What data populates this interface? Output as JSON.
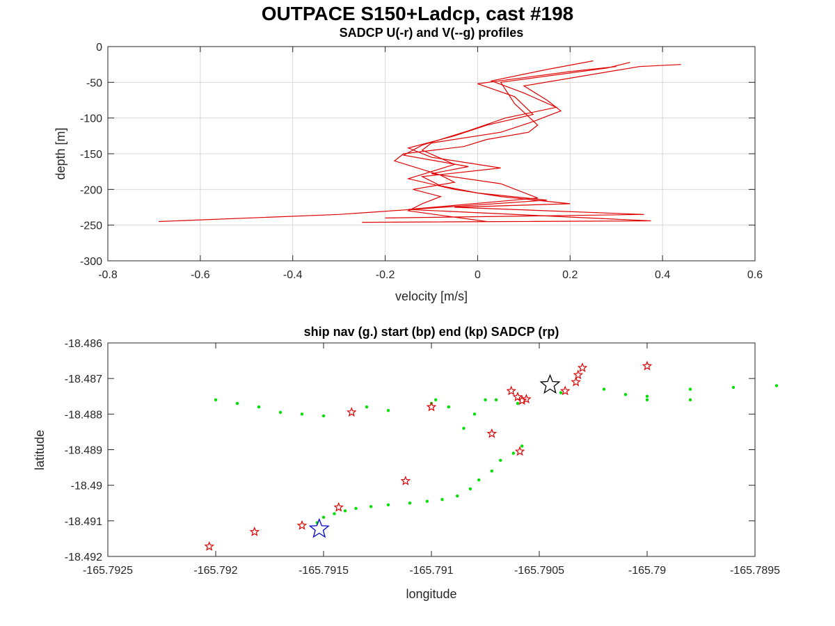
{
  "figure": {
    "title": "OUTPACE S150+Ladcp, cast #198"
  },
  "chart_data": [
    {
      "type": "line",
      "title": "SADCP U(-r) and V(--g) profiles",
      "xlabel": "velocity [m/s]",
      "ylabel": "depth [m]",
      "xlim": [
        -0.8,
        0.6
      ],
      "ylim": [
        -300,
        0
      ],
      "xticks": [
        "-0.8",
        "-0.6",
        "-0.4",
        "-0.2",
        "0",
        "0.2",
        "0.4",
        "0.6"
      ],
      "yticks": [
        "0",
        "-50",
        "-100",
        "-150",
        "-200",
        "-250",
        "-300"
      ],
      "grid": true,
      "colors": {
        "U": "#e00000",
        "V": "#00e000"
      },
      "series": [
        {
          "name": "U",
          "style": "solid",
          "color": "#e00000",
          "x": [
            0.33,
            0.28,
            0.05,
            0.08,
            0.13,
            0.11,
            0.02,
            -0.03,
            -0.16,
            -0.18,
            -0.08,
            -0.05,
            -0.14,
            -0.08,
            -0.12,
            -0.15,
            0.02
          ],
          "y": [
            -22,
            -30,
            -50,
            -80,
            -110,
            -120,
            -130,
            -140,
            -150,
            -160,
            -180,
            -190,
            -200,
            -210,
            -220,
            -230,
            -245
          ]
        },
        {
          "name": "U",
          "style": "solid",
          "color": "#e00000",
          "x": [
            0.44,
            0.35,
            0.1,
            0.15,
            0.18,
            0.12,
            0.05,
            -0.1,
            -0.12,
            -0.05,
            -0.15,
            -0.05,
            0.05,
            0.2,
            -0.05,
            0.36,
            -0.2
          ],
          "y": [
            -25,
            -28,
            -55,
            -75,
            -90,
            -105,
            -120,
            -135,
            -145,
            -165,
            -185,
            -200,
            -210,
            -220,
            -225,
            -235,
            -240
          ]
        },
        {
          "name": "U",
          "style": "solid",
          "color": "#e00000",
          "x": [
            0.3,
            0.2,
            0.0,
            0.08,
            0.12,
            0.02,
            -0.05,
            -0.15,
            -0.1,
            0.05,
            -0.12,
            -0.08,
            0.0,
            0.15,
            -0.3,
            -0.69
          ],
          "y": [
            -28,
            -35,
            -52,
            -70,
            -95,
            -110,
            -125,
            -142,
            -155,
            -170,
            -182,
            -195,
            -205,
            -215,
            -235,
            -245
          ]
        },
        {
          "name": "U",
          "style": "solid",
          "color": "#e00000",
          "x": [
            0.25,
            0.15,
            0.03,
            0.1,
            0.17,
            0.06,
            -0.02,
            -0.12,
            -0.16,
            -0.02,
            -0.1,
            0.05,
            0.13,
            -0.15,
            0.375,
            -0.25
          ],
          "y": [
            -20,
            -32,
            -48,
            -65,
            -85,
            -100,
            -118,
            -138,
            -152,
            -168,
            -178,
            -192,
            -212,
            -228,
            -244,
            -246
          ]
        }
      ]
    },
    {
      "type": "scatter",
      "title": "ship nav (g.) start (bp) end (kp) SADCP (rp)",
      "xlabel": "longitude",
      "ylabel": "latitude",
      "xlim": [
        -165.7925,
        -165.7895
      ],
      "ylim": [
        -18.492,
        -18.486
      ],
      "xticks": [
        "-165.7925",
        "-165.792",
        "-165.7915",
        "-165.791",
        "-165.7905",
        "-165.79",
        "-165.7895"
      ],
      "yticks": [
        "-18.486",
        "-18.487",
        "-18.488",
        "-18.489",
        "-18.49",
        "-18.491",
        "-18.492"
      ],
      "grid": false,
      "colors": {
        "nav": "#00e000",
        "start": "#0000cc",
        "end": "#000000",
        "sadcp": "#e00000"
      },
      "series": [
        {
          "name": "nav",
          "marker": "dot",
          "color": "#00e000",
          "x": [
            -165.79153,
            -165.7915,
            -165.79145,
            -165.7914,
            -165.79135,
            -165.79128,
            -165.7912,
            -165.7911,
            -165.79102,
            -165.79095,
            -165.79088,
            -165.79082,
            -165.79078,
            -165.79072,
            -165.79068,
            -165.79062,
            -165.79058,
            -165.79085,
            -165.7908,
            -165.79092,
            -165.79098,
            -165.7907,
            -165.7906,
            -165.7904,
            -165.7902,
            -165.79,
            -165.7898,
            -165.7896,
            -165.7894,
            -165.7898,
            -165.79,
            -165.7901,
            -165.7916,
            -165.7917,
            -165.7918,
            -165.7919,
            -165.792,
            -165.7915,
            -165.7913,
            -165.7912,
            -165.791,
            -165.79075
          ],
          "y": [
            -18.49105,
            -18.4909,
            -18.4908,
            -18.49072,
            -18.49065,
            -18.4906,
            -18.49055,
            -18.4905,
            -18.49045,
            -18.4904,
            -18.4903,
            -18.4901,
            -18.48985,
            -18.4896,
            -18.4893,
            -18.4891,
            -18.4889,
            -18.4884,
            -18.488,
            -18.4878,
            -18.4876,
            -18.4876,
            -18.4877,
            -18.4874,
            -18.4873,
            -18.4875,
            -18.4876,
            -18.48725,
            -18.4872,
            -18.4873,
            -18.4876,
            -18.48745,
            -18.488,
            -18.48795,
            -18.4878,
            -18.4877,
            -18.4876,
            -18.48805,
            -18.4878,
            -18.4879,
            -18.4877,
            -18.4876
          ]
        },
        {
          "name": "start",
          "marker": "star",
          "color": "#0000cc",
          "x": [
            -165.79152
          ],
          "y": [
            -18.49123
          ]
        },
        {
          "name": "end",
          "marker": "star",
          "color": "#000000",
          "x": [
            -165.79045
          ],
          "y": [
            -18.48718
          ]
        },
        {
          "name": "SADCP",
          "marker": "star",
          "color": "#e00000",
          "x": [
            -165.79203,
            -165.79182,
            -165.7916,
            -165.79143,
            -165.79112,
            -165.791,
            -165.79072,
            -165.79059,
            -165.79056,
            -165.79063,
            -165.7906,
            -165.79137,
            -165.79038,
            -165.79033,
            -165.79032,
            -165.7903,
            -165.79,
            -165.79058
          ],
          "y": [
            -18.49172,
            -18.49131,
            -18.49113,
            -18.49062,
            -18.48988,
            -18.4878,
            -18.48855,
            -18.48905,
            -18.48758,
            -18.48735,
            -18.48752,
            -18.48795,
            -18.48735,
            -18.4871,
            -18.4869,
            -18.4867,
            -18.48665,
            -18.48762
          ]
        }
      ]
    }
  ]
}
